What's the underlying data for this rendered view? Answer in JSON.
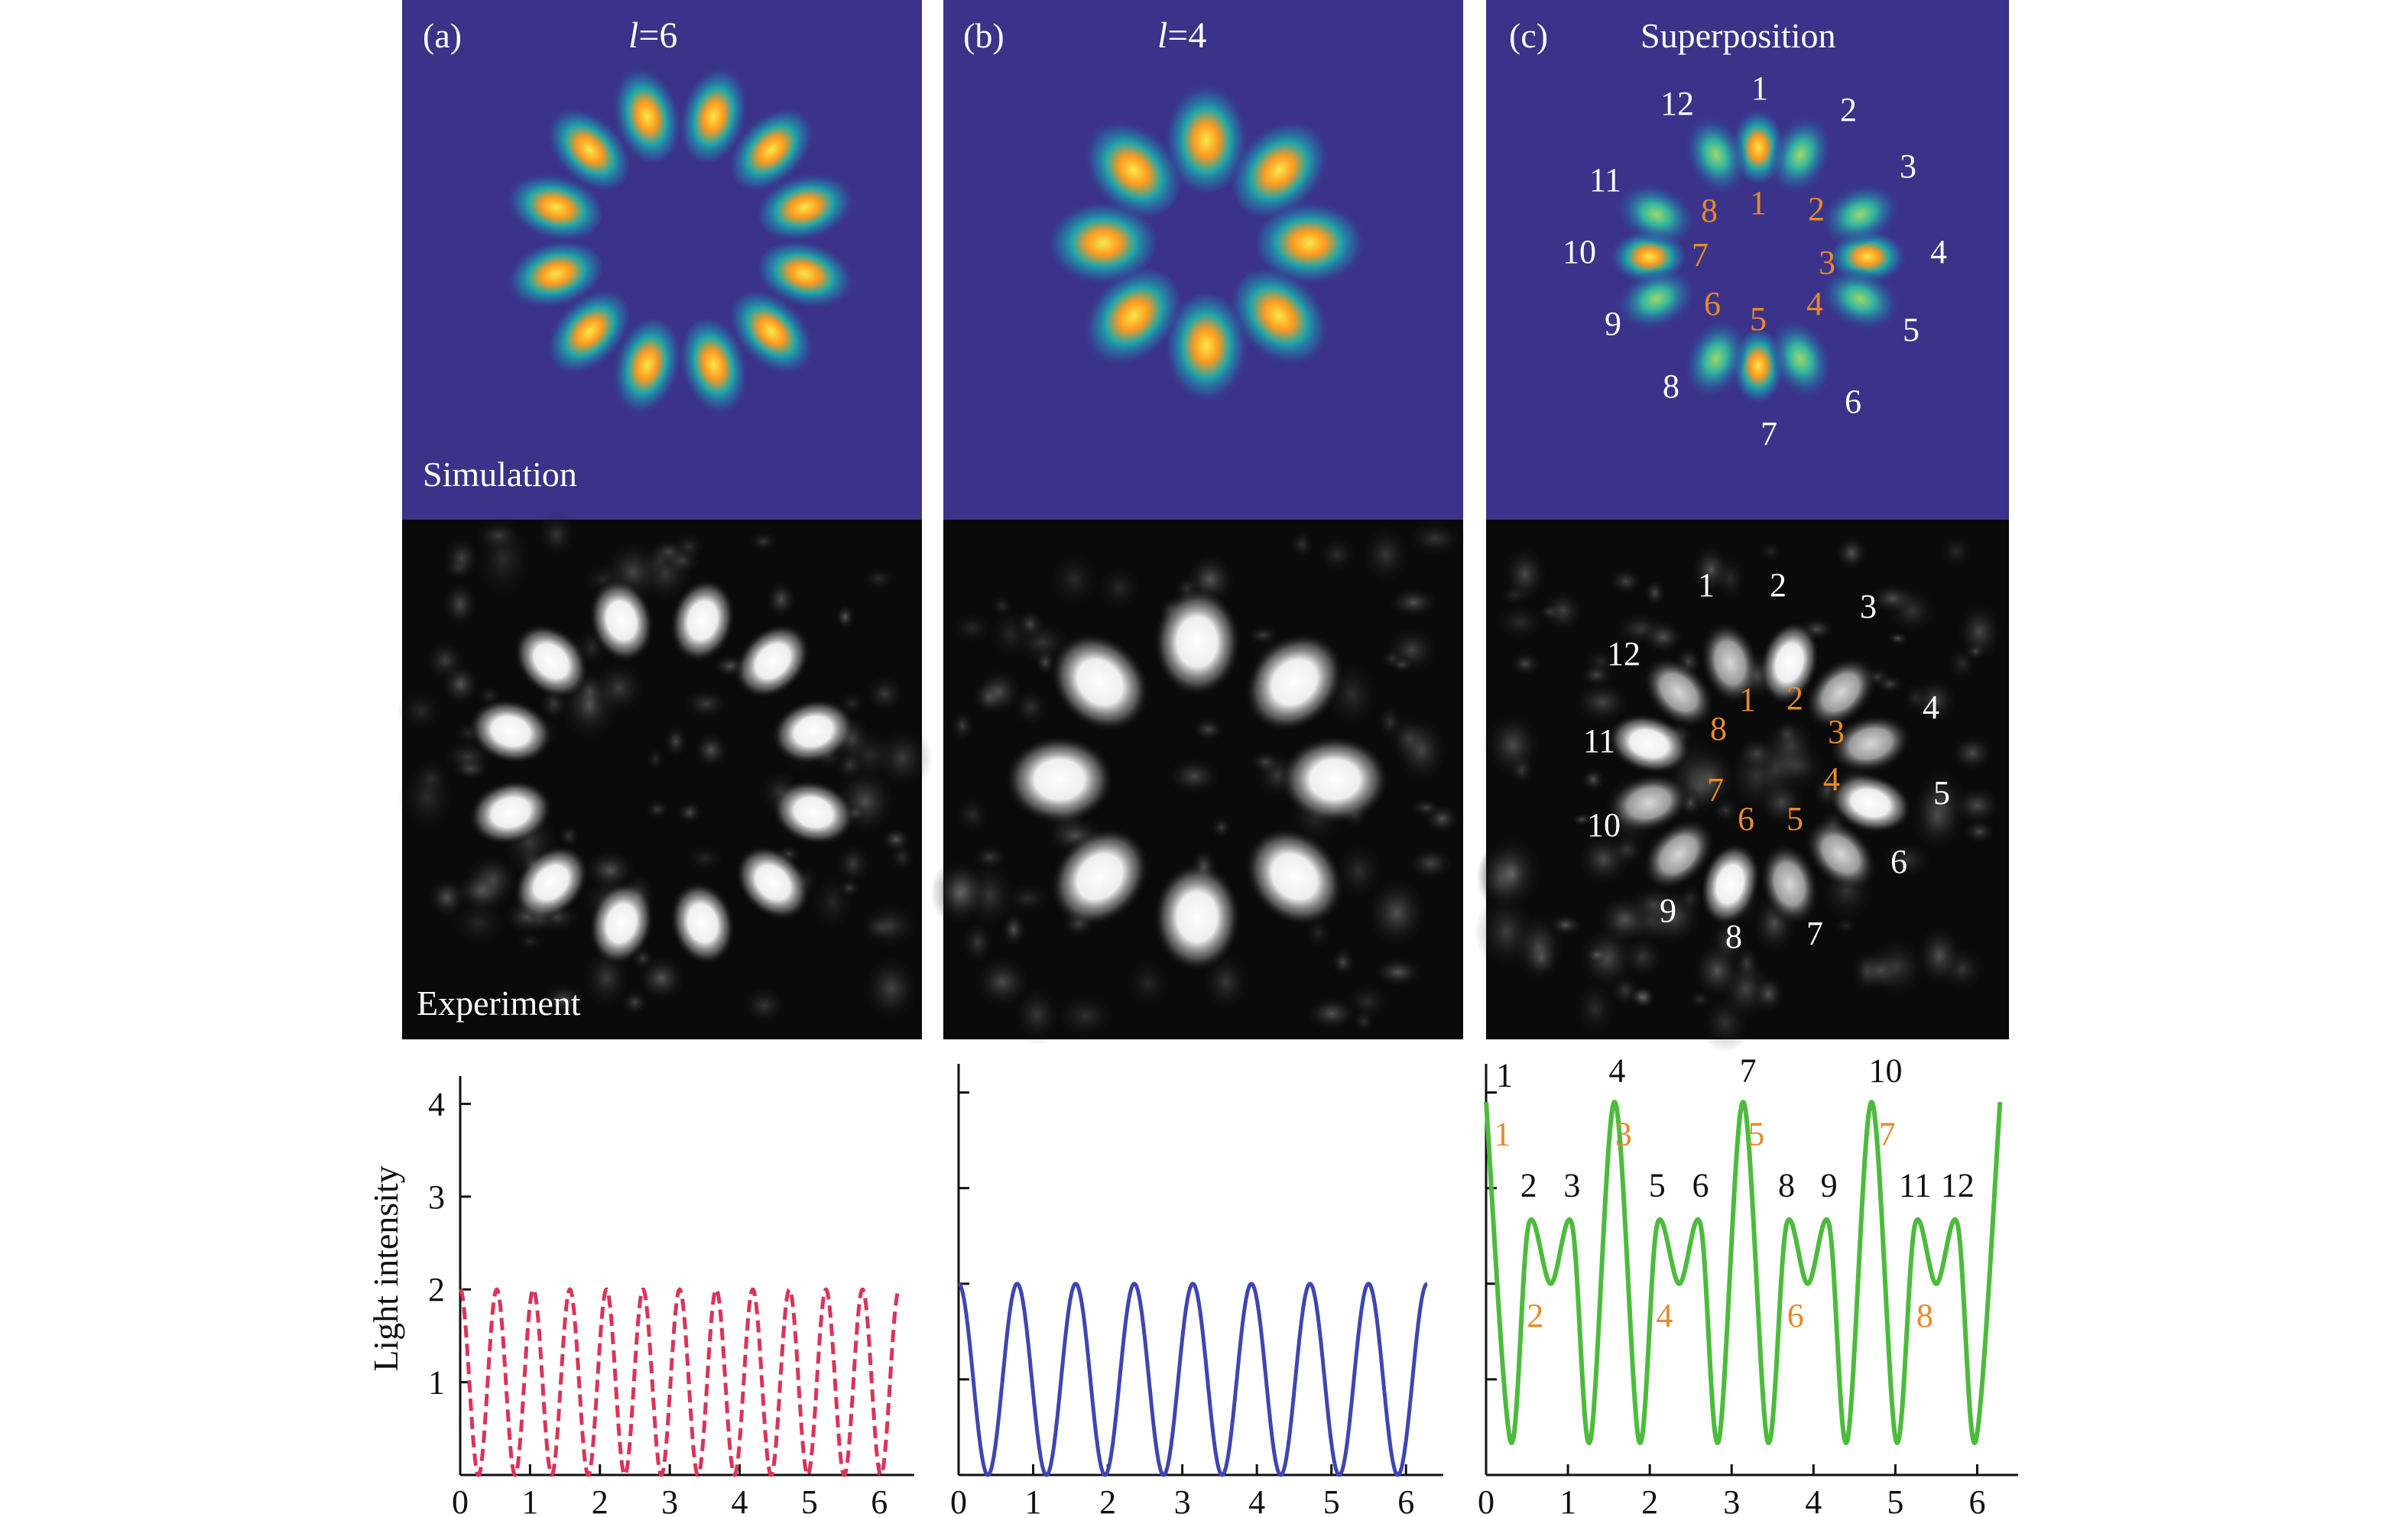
{
  "colors": {
    "sim_background": "#3a3389",
    "exp_background": "#0a0a0a",
    "spot_core": "#f6e94a",
    "spot_mid": "#ff8a1c",
    "spot_outer": "#1fa6a8",
    "label_white": "#ffffff",
    "label_orange": "#e8892b",
    "curve_a": "#d9345a",
    "curve_b": "#3f45b0",
    "curve_c": "#4cbb3c",
    "axis": "#111111"
  },
  "panels": [
    {
      "id": "a",
      "tag": "(a)",
      "title_prefix": "l",
      "title_suffix": "=6",
      "sim_label": "Simulation",
      "exp_label": "Experiment",
      "spot_count": 12,
      "exp_spot_count": 12
    },
    {
      "id": "b",
      "tag": "(b)",
      "title_prefix": "l",
      "title_suffix": "=4",
      "sim_label": "",
      "exp_label": "",
      "spot_count": 8,
      "exp_spot_count": 8
    },
    {
      "id": "c",
      "tag": "(c)",
      "title": "Superposition",
      "outer_labels": [
        "1",
        "2",
        "3",
        "4",
        "5",
        "6",
        "7",
        "8",
        "9",
        "10",
        "11",
        "12"
      ],
      "inner_labels": [
        "1",
        "2",
        "3",
        "4",
        "5",
        "6",
        "7",
        "8"
      ]
    }
  ],
  "y_axis_label": "Light intensity",
  "chart_data": [
    {
      "type": "line",
      "panel": "a",
      "function": "1 + cos(12*x)",
      "x_range": [
        0,
        6.283
      ],
      "xlim": [
        0,
        6.5
      ],
      "ylim": [
        0,
        4.3
      ],
      "x_ticks": [
        "0",
        "1",
        "2",
        "3",
        "4",
        "5",
        "6"
      ],
      "y_ticks": [
        "1",
        "2",
        "3",
        "4"
      ],
      "line_style": "dashed",
      "color": "#d9345a"
    },
    {
      "type": "line",
      "panel": "b",
      "function": "1 + cos(8*x)",
      "x_range": [
        0,
        6.283
      ],
      "xlim": [
        0,
        6.5
      ],
      "ylim": [
        0,
        4.3
      ],
      "x_ticks": [
        "0",
        "1",
        "2",
        "3",
        "4",
        "5",
        "6"
      ],
      "line_style": "solid",
      "color": "#3f45b0"
    },
    {
      "type": "line",
      "panel": "c",
      "function": "(|cos(6x)| + |cos(4x)|)^2-like superposition; peaks 3.9 at x=0,pi/2,pi,3pi/2,2pi; secondary peaks 2.6; minima 0.35 and 2.0",
      "x": [
        0,
        0.3,
        0.52,
        0.79,
        1.05,
        1.27,
        1.57,
        1.87,
        2.09,
        2.36,
        2.62,
        2.84,
        3.14,
        3.44,
        3.67,
        3.93,
        4.19,
        4.41,
        4.71,
        5.01,
        5.24,
        5.5,
        5.76,
        5.98,
        6.28
      ],
      "y": [
        3.9,
        0.35,
        2.62,
        2.0,
        2.62,
        0.35,
        3.9,
        0.35,
        2.62,
        2.0,
        2.62,
        0.35,
        3.9,
        0.35,
        2.62,
        2.0,
        2.62,
        0.35,
        3.9,
        0.35,
        2.62,
        2.0,
        2.62,
        0.35,
        3.9
      ],
      "xlim": [
        0,
        6.5
      ],
      "ylim": [
        0,
        4.3
      ],
      "x_ticks": [
        "0",
        "1",
        "2",
        "3",
        "4",
        "5",
        "6"
      ],
      "line_style": "solid",
      "color": "#4cbb3c",
      "peak_labels_black": [
        "1",
        "2",
        "3",
        "4",
        "5",
        "6",
        "7",
        "8",
        "9",
        "10",
        "11",
        "12"
      ],
      "peak_labels_orange": [
        "1",
        "2",
        "3",
        "4",
        "5",
        "6",
        "7",
        "8"
      ]
    }
  ]
}
